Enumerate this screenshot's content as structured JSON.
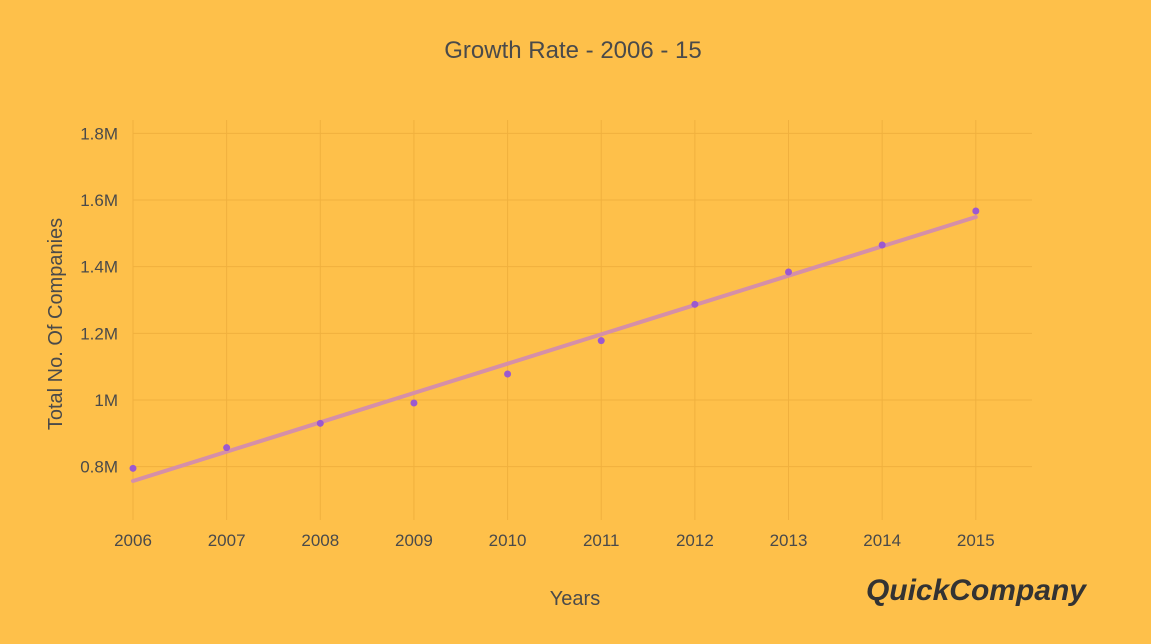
{
  "chart_data": {
    "type": "scatter",
    "title": "Growth Rate - 2006 - 15",
    "xlabel": "Years",
    "ylabel": "Total No. Of Companies",
    "x": [
      2006,
      2007,
      2008,
      2009,
      2010,
      2011,
      2012,
      2013,
      2014,
      2015
    ],
    "x_ticks": [
      "2006",
      "2007",
      "2008",
      "2009",
      "2010",
      "2011",
      "2012",
      "2013",
      "2014",
      "2015"
    ],
    "y_ticks": [
      {
        "value": 800000,
        "label": "0.8M"
      },
      {
        "value": 1000000,
        "label": "1M"
      },
      {
        "value": 1200000,
        "label": "1.2M"
      },
      {
        "value": 1400000,
        "label": "1.4M"
      },
      {
        "value": 1600000,
        "label": "1.6M"
      },
      {
        "value": 1800000,
        "label": "1.8M"
      }
    ],
    "xlim": [
      2006,
      2015.6
    ],
    "ylim": [
      640000,
      1840000
    ],
    "series": [
      {
        "values": [
          795000,
          857000,
          930000,
          991000,
          1078000,
          1178000,
          1287000,
          1384000,
          1465000,
          1567000
        ],
        "color": "#9B59D0"
      }
    ],
    "trend_line": {
      "start": [
        2006,
        757000
      ],
      "end": [
        2015,
        1549000
      ],
      "color": "#D58FA8"
    },
    "grid": true
  },
  "watermark": {
    "text": "QuickCompany"
  }
}
